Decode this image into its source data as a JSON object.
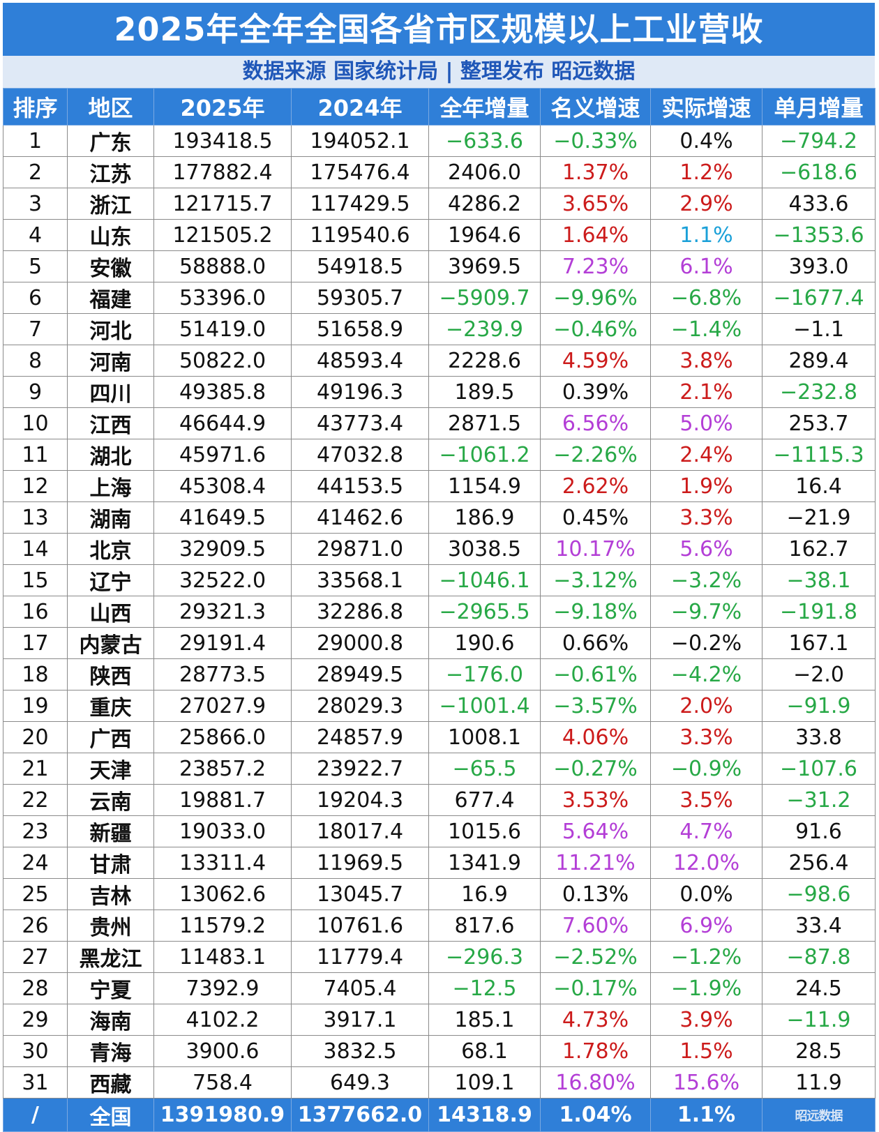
{
  "title": "2025年全年全国各省市区规模以上工业营收",
  "subtitle": "数据来源 国家统计局 | 整理发布 昭远数据",
  "headers": [
    "排序",
    "地区",
    "2025年",
    "2024年",
    "全年增量",
    "名义增速",
    "实际增速",
    "单月增量"
  ],
  "colors": {
    "header_bg": "#2f7fd8",
    "negative": "#27a846",
    "red": "#cc1b1b",
    "purple": "#b33ed6",
    "blue": "#1aa0d8"
  },
  "rows": [
    {
      "rank": "1",
      "region": "广东",
      "y2025": "193418.5",
      "y2024": "194052.1",
      "increase": "−633.6",
      "nominal": "−0.33%",
      "real": "0.4%",
      "monthly": "−794.2",
      "c": [
        "neg",
        "neg",
        "dark",
        "neg"
      ]
    },
    {
      "rank": "2",
      "region": "江苏",
      "y2025": "177882.4",
      "y2024": "175476.4",
      "increase": "2406.0",
      "nominal": "1.37%",
      "real": "1.2%",
      "monthly": "−618.6",
      "c": [
        "dark",
        "red",
        "red",
        "neg"
      ]
    },
    {
      "rank": "3",
      "region": "浙江",
      "y2025": "121715.7",
      "y2024": "117429.5",
      "increase": "4286.2",
      "nominal": "3.65%",
      "real": "2.9%",
      "monthly": "433.6",
      "c": [
        "dark",
        "red",
        "red",
        "dark"
      ]
    },
    {
      "rank": "4",
      "region": "山东",
      "y2025": "121505.2",
      "y2024": "119540.6",
      "increase": "1964.6",
      "nominal": "1.64%",
      "real": "1.1%",
      "monthly": "−1353.6",
      "c": [
        "dark",
        "red",
        "blue",
        "neg"
      ]
    },
    {
      "rank": "5",
      "region": "安徽",
      "y2025": "58888.0",
      "y2024": "54918.5",
      "increase": "3969.5",
      "nominal": "7.23%",
      "real": "6.1%",
      "monthly": "393.0",
      "c": [
        "dark",
        "purple",
        "purple",
        "dark"
      ]
    },
    {
      "rank": "6",
      "region": "福建",
      "y2025": "53396.0",
      "y2024": "59305.7",
      "increase": "−5909.7",
      "nominal": "−9.96%",
      "real": "−6.8%",
      "monthly": "−1677.4",
      "c": [
        "neg",
        "neg",
        "neg",
        "neg"
      ]
    },
    {
      "rank": "7",
      "region": "河北",
      "y2025": "51419.0",
      "y2024": "51658.9",
      "increase": "−239.9",
      "nominal": "−0.46%",
      "real": "−1.4%",
      "monthly": "−1.1",
      "c": [
        "neg",
        "neg",
        "neg",
        "dark"
      ]
    },
    {
      "rank": "8",
      "region": "河南",
      "y2025": "50822.0",
      "y2024": "48593.4",
      "increase": "2228.6",
      "nominal": "4.59%",
      "real": "3.8%",
      "monthly": "289.4",
      "c": [
        "dark",
        "red",
        "red",
        "dark"
      ]
    },
    {
      "rank": "9",
      "region": "四川",
      "y2025": "49385.8",
      "y2024": "49196.3",
      "increase": "189.5",
      "nominal": "0.39%",
      "real": "2.1%",
      "monthly": "−232.8",
      "c": [
        "dark",
        "dark",
        "red",
        "neg"
      ]
    },
    {
      "rank": "10",
      "region": "江西",
      "y2025": "46644.9",
      "y2024": "43773.4",
      "increase": "2871.5",
      "nominal": "6.56%",
      "real": "5.0%",
      "monthly": "253.7",
      "c": [
        "dark",
        "purple",
        "purple",
        "dark"
      ]
    },
    {
      "rank": "11",
      "region": "湖北",
      "y2025": "45971.6",
      "y2024": "47032.8",
      "increase": "−1061.2",
      "nominal": "−2.26%",
      "real": "2.4%",
      "monthly": "−1115.3",
      "c": [
        "neg",
        "neg",
        "red",
        "neg"
      ]
    },
    {
      "rank": "12",
      "region": "上海",
      "y2025": "45308.4",
      "y2024": "44153.5",
      "increase": "1154.9",
      "nominal": "2.62%",
      "real": "1.9%",
      "monthly": "16.4",
      "c": [
        "dark",
        "red",
        "red",
        "dark"
      ]
    },
    {
      "rank": "13",
      "region": "湖南",
      "y2025": "41649.5",
      "y2024": "41462.6",
      "increase": "186.9",
      "nominal": "0.45%",
      "real": "3.3%",
      "monthly": "−21.9",
      "c": [
        "dark",
        "dark",
        "red",
        "dark"
      ]
    },
    {
      "rank": "14",
      "region": "北京",
      "y2025": "32909.5",
      "y2024": "29871.0",
      "increase": "3038.5",
      "nominal": "10.17%",
      "real": "5.6%",
      "monthly": "162.7",
      "c": [
        "dark",
        "purple",
        "purple",
        "dark"
      ]
    },
    {
      "rank": "15",
      "region": "辽宁",
      "y2025": "32522.0",
      "y2024": "33568.1",
      "increase": "−1046.1",
      "nominal": "−3.12%",
      "real": "−3.2%",
      "monthly": "−38.1",
      "c": [
        "neg",
        "neg",
        "neg",
        "neg"
      ]
    },
    {
      "rank": "16",
      "region": "山西",
      "y2025": "29321.3",
      "y2024": "32286.8",
      "increase": "−2965.5",
      "nominal": "−9.18%",
      "real": "−9.7%",
      "monthly": "−191.8",
      "c": [
        "neg",
        "neg",
        "neg",
        "neg"
      ]
    },
    {
      "rank": "17",
      "region": "内蒙古",
      "y2025": "29191.4",
      "y2024": "29000.8",
      "increase": "190.6",
      "nominal": "0.66%",
      "real": "−0.2%",
      "monthly": "167.1",
      "c": [
        "dark",
        "dark",
        "dark",
        "dark"
      ]
    },
    {
      "rank": "18",
      "region": "陕西",
      "y2025": "28773.5",
      "y2024": "28949.5",
      "increase": "−176.0",
      "nominal": "−0.61%",
      "real": "−4.2%",
      "monthly": "−2.0",
      "c": [
        "neg",
        "neg",
        "neg",
        "dark"
      ]
    },
    {
      "rank": "19",
      "region": "重庆",
      "y2025": "27027.9",
      "y2024": "28029.3",
      "increase": "−1001.4",
      "nominal": "−3.57%",
      "real": "2.0%",
      "monthly": "−91.9",
      "c": [
        "neg",
        "neg",
        "red",
        "neg"
      ]
    },
    {
      "rank": "20",
      "region": "广西",
      "y2025": "25866.0",
      "y2024": "24857.9",
      "increase": "1008.1",
      "nominal": "4.06%",
      "real": "3.3%",
      "monthly": "33.8",
      "c": [
        "dark",
        "red",
        "red",
        "dark"
      ]
    },
    {
      "rank": "21",
      "region": "天津",
      "y2025": "23857.2",
      "y2024": "23922.7",
      "increase": "−65.5",
      "nominal": "−0.27%",
      "real": "−0.9%",
      "monthly": "−107.6",
      "c": [
        "neg",
        "neg",
        "neg",
        "neg"
      ]
    },
    {
      "rank": "22",
      "region": "云南",
      "y2025": "19881.7",
      "y2024": "19204.3",
      "increase": "677.4",
      "nominal": "3.53%",
      "real": "3.5%",
      "monthly": "−31.2",
      "c": [
        "dark",
        "red",
        "red",
        "neg"
      ]
    },
    {
      "rank": "23",
      "region": "新疆",
      "y2025": "19033.0",
      "y2024": "18017.4",
      "increase": "1015.6",
      "nominal": "5.64%",
      "real": "4.7%",
      "monthly": "91.6",
      "c": [
        "dark",
        "purple",
        "purple",
        "dark"
      ]
    },
    {
      "rank": "24",
      "region": "甘肃",
      "y2025": "13311.4",
      "y2024": "11969.5",
      "increase": "1341.9",
      "nominal": "11.21%",
      "real": "12.0%",
      "monthly": "256.4",
      "c": [
        "dark",
        "purple",
        "purple",
        "dark"
      ]
    },
    {
      "rank": "25",
      "region": "吉林",
      "y2025": "13062.6",
      "y2024": "13045.7",
      "increase": "16.9",
      "nominal": "0.13%",
      "real": "0.0%",
      "monthly": "−98.6",
      "c": [
        "dark",
        "dark",
        "dark",
        "neg"
      ]
    },
    {
      "rank": "26",
      "region": "贵州",
      "y2025": "11579.2",
      "y2024": "10761.6",
      "increase": "817.6",
      "nominal": "7.60%",
      "real": "6.9%",
      "monthly": "33.4",
      "c": [
        "dark",
        "purple",
        "purple",
        "dark"
      ]
    },
    {
      "rank": "27",
      "region": "黑龙江",
      "y2025": "11483.1",
      "y2024": "11779.4",
      "increase": "−296.3",
      "nominal": "−2.52%",
      "real": "−1.2%",
      "monthly": "−87.8",
      "c": [
        "neg",
        "neg",
        "neg",
        "neg"
      ]
    },
    {
      "rank": "28",
      "region": "宁夏",
      "y2025": "7392.9",
      "y2024": "7405.4",
      "increase": "−12.5",
      "nominal": "−0.17%",
      "real": "−1.9%",
      "monthly": "24.5",
      "c": [
        "neg",
        "neg",
        "neg",
        "dark"
      ]
    },
    {
      "rank": "29",
      "region": "海南",
      "y2025": "4102.2",
      "y2024": "3917.1",
      "increase": "185.1",
      "nominal": "4.73%",
      "real": "3.9%",
      "monthly": "−11.9",
      "c": [
        "dark",
        "red",
        "red",
        "neg"
      ]
    },
    {
      "rank": "30",
      "region": "青海",
      "y2025": "3900.6",
      "y2024": "3832.5",
      "increase": "68.1",
      "nominal": "1.78%",
      "real": "1.5%",
      "monthly": "28.5",
      "c": [
        "dark",
        "red",
        "red",
        "dark"
      ]
    },
    {
      "rank": "31",
      "region": "西藏",
      "y2025": "758.4",
      "y2024": "649.3",
      "increase": "109.1",
      "nominal": "16.80%",
      "real": "15.6%",
      "monthly": "11.9",
      "c": [
        "dark",
        "purple",
        "purple",
        "dark"
      ]
    }
  ],
  "total": {
    "rank": "/",
    "region": "全国",
    "y2025": "1391980.9",
    "y2024": "1377662.0",
    "increase": "14318.9",
    "nominal": "1.04%",
    "real": "1.1%",
    "monthly": "昭远数据"
  }
}
